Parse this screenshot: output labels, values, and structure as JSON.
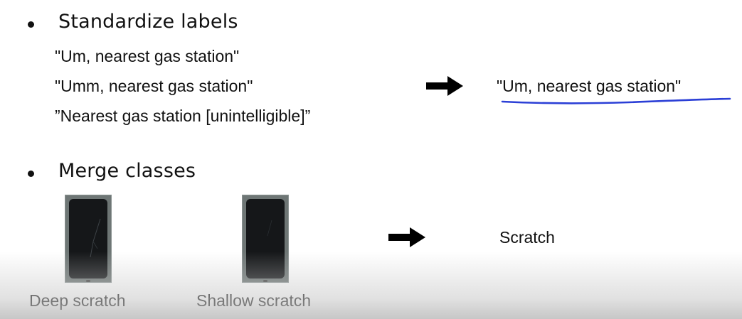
{
  "section1": {
    "heading": "Standardize labels",
    "labels": [
      "\"Um, nearest gas station\"",
      "\"Umm, nearest gas station\"",
      "”Nearest gas station [unintelligible]”"
    ],
    "result": "\"Um, nearest gas station\"",
    "underline_color": "#2b3fd6"
  },
  "section2": {
    "heading": "Merge classes",
    "images": [
      {
        "caption": "Deep scratch"
      },
      {
        "caption": "Shallow scratch"
      }
    ],
    "result": "Scratch"
  }
}
